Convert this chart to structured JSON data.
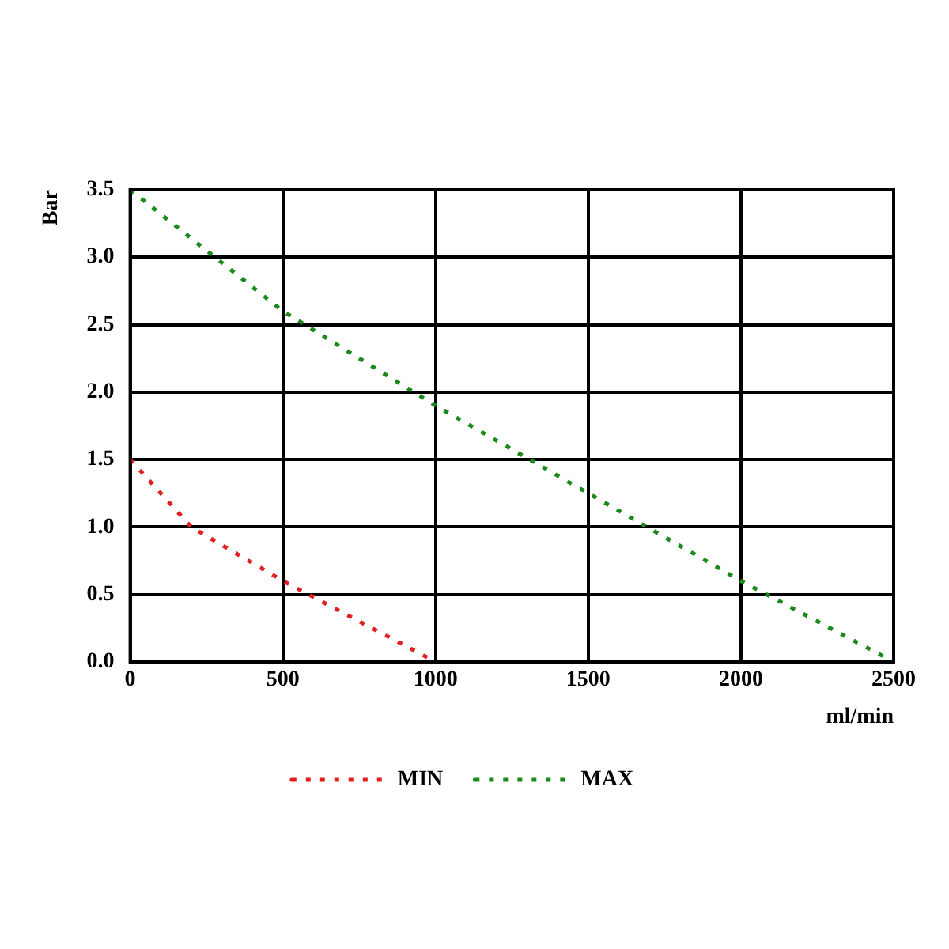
{
  "chart_data": {
    "type": "line",
    "xlabel": "ml/min",
    "ylabel": "Bar",
    "xlim": [
      0,
      2500
    ],
    "xticks": [
      0,
      500,
      1000,
      1500,
      2000,
      2500
    ],
    "ylim": [
      0,
      3.5
    ],
    "yticks": [
      {
        "value": 0,
        "label": "0.0"
      },
      0.5,
      {
        "value": 1,
        "label": "1.0"
      },
      1.5,
      {
        "value": 2,
        "label": "2.0"
      },
      2.5,
      {
        "value": 3,
        "label": "3.0"
      },
      3.5
    ],
    "grid": true,
    "legend": "bottom",
    "line_style": "dotted",
    "marker": "none",
    "series": [
      {
        "name": "MIN",
        "color": "#e02020",
        "x": [
          0,
          200,
          500,
          1000
        ],
        "values": [
          1.5,
          1.0,
          0.6,
          0
        ]
      },
      {
        "name": "MAX",
        "color": "#1a8a1a",
        "x": [
          0,
          500,
          1000,
          1500,
          2000,
          2500
        ],
        "values": [
          3.5,
          2.6,
          1.9,
          1.25,
          0.6,
          0
        ]
      }
    ]
  }
}
